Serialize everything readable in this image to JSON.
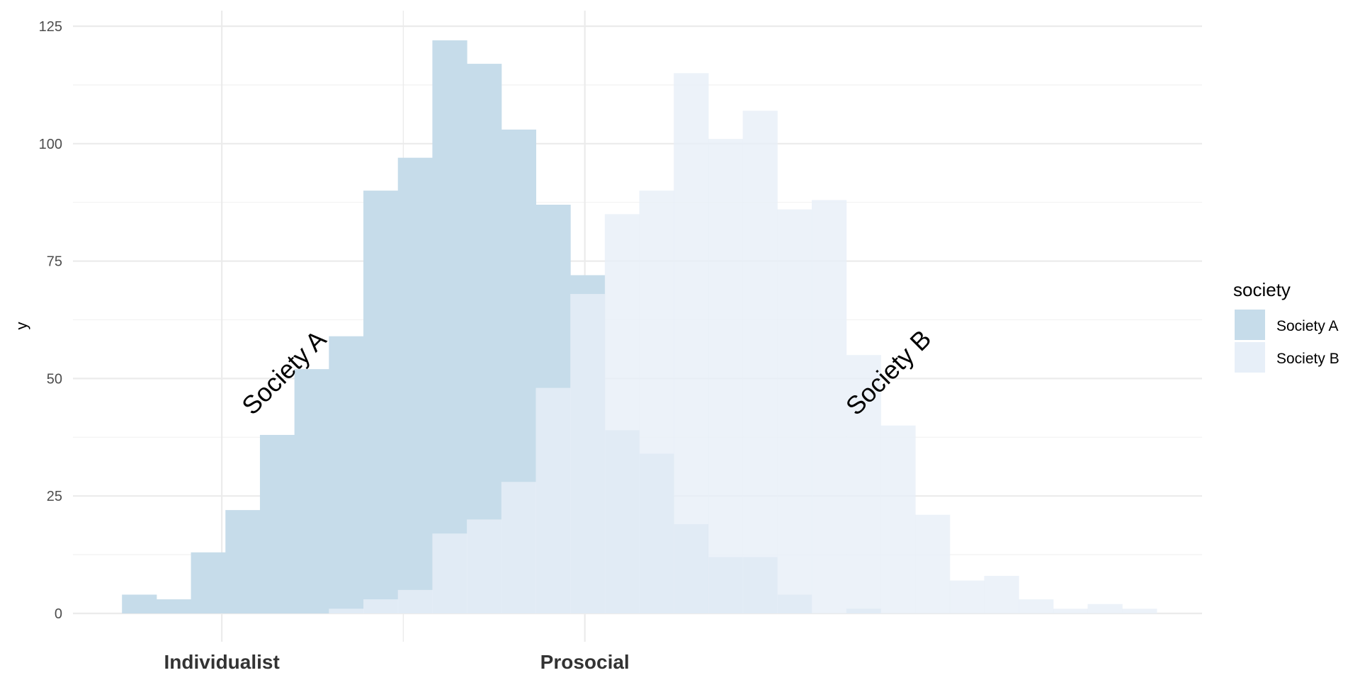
{
  "chart_data": {
    "type": "histogram",
    "ylabel": "y",
    "xlabel": "",
    "ylim": [
      0,
      125
    ],
    "y_ticks": [
      0,
      25,
      50,
      75,
      100,
      125
    ],
    "x_ticks": [
      {
        "value": 0,
        "label": "Individualist"
      },
      {
        "value": 1,
        "label": "Prosocial"
      }
    ],
    "xlim": [
      -0.41,
      2.7
    ],
    "bin_edges": [
      -0.275,
      -0.18,
      -0.085,
      0.01,
      0.105,
      0.2,
      0.295,
      0.39,
      0.485,
      0.58,
      0.675,
      0.77,
      0.865,
      0.96,
      1.055,
      1.15,
      1.245,
      1.34,
      1.435,
      1.53,
      1.625,
      1.72,
      1.815,
      1.91,
      2.005,
      2.1,
      2.195,
      2.29,
      2.385,
      2.48,
      2.575
    ],
    "series": [
      {
        "name": "Society A",
        "color": "#c6dcea",
        "values": [
          4,
          3,
          13,
          22,
          38,
          52,
          59,
          90,
          97,
          122,
          117,
          103,
          87,
          72,
          39,
          34,
          19,
          12,
          12,
          4,
          0,
          1,
          0,
          0,
          0,
          0,
          0,
          0,
          0,
          0
        ]
      },
      {
        "name": "Society B",
        "color": "#e7eff8",
        "values": [
          0,
          0,
          0,
          0,
          0,
          0,
          1,
          3,
          5,
          17,
          20,
          28,
          48,
          68,
          85,
          90,
          115,
          101,
          107,
          86,
          88,
          55,
          40,
          21,
          7,
          8,
          3,
          1,
          2,
          1
        ]
      }
    ],
    "annotations": [
      {
        "text": "Society A",
        "x": 0.175,
        "y": 51,
        "angle": -45
      },
      {
        "text": "Society B",
        "x": 1.84,
        "y": 51,
        "angle": -45
      }
    ],
    "legend": {
      "title": "society",
      "position": "right"
    },
    "grid": true
  }
}
